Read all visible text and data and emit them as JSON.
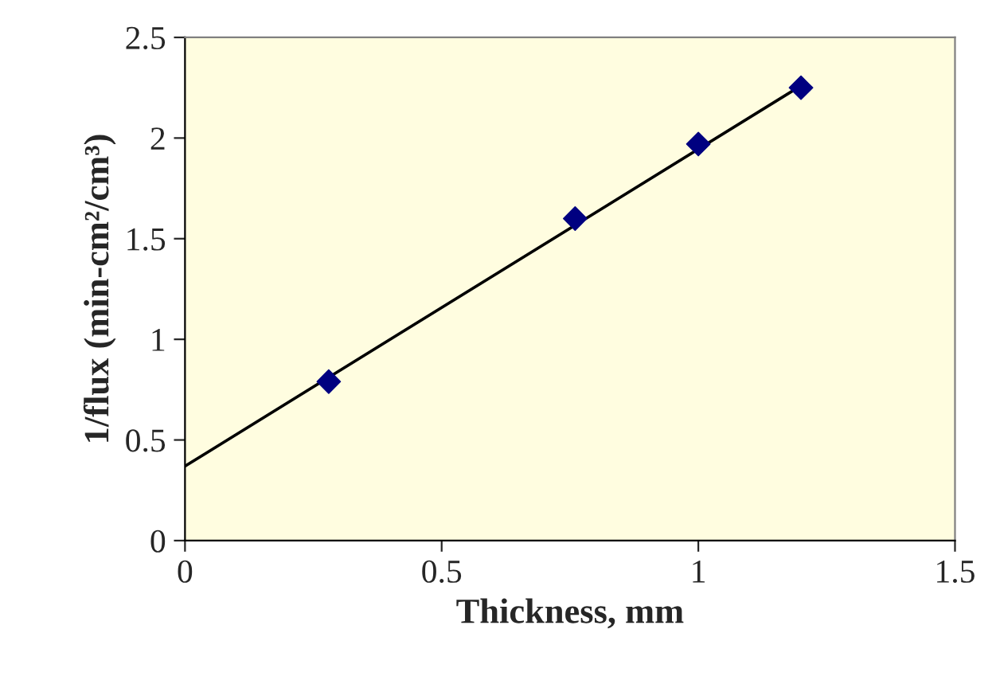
{
  "chart_data": {
    "type": "scatter",
    "xlabel": "Thickness, mm",
    "ylabel": "1/flux (min-cm²/cm³)",
    "series": [
      {
        "color": "#000080",
        "x": [
          0.28,
          0.76,
          1.0,
          1.2
        ],
        "values": [
          0.79,
          1.6,
          1.97,
          2.25
        ],
        "marker": "diamond"
      },
      {
        "type": "line",
        "color": "#000000",
        "x": [
          0,
          1.2
        ],
        "values": [
          0.37,
          2.26
        ],
        "marker": "none",
        "line_style": "solid"
      }
    ],
    "xlim": [
      0,
      1.5
    ],
    "xticks": [
      0,
      0.5,
      1,
      1.5
    ],
    "ylim": [
      0,
      2.5
    ],
    "yticks": [
      0,
      0.5,
      1,
      1.5,
      2,
      2.5
    ],
    "grid": false,
    "legend": false
  }
}
